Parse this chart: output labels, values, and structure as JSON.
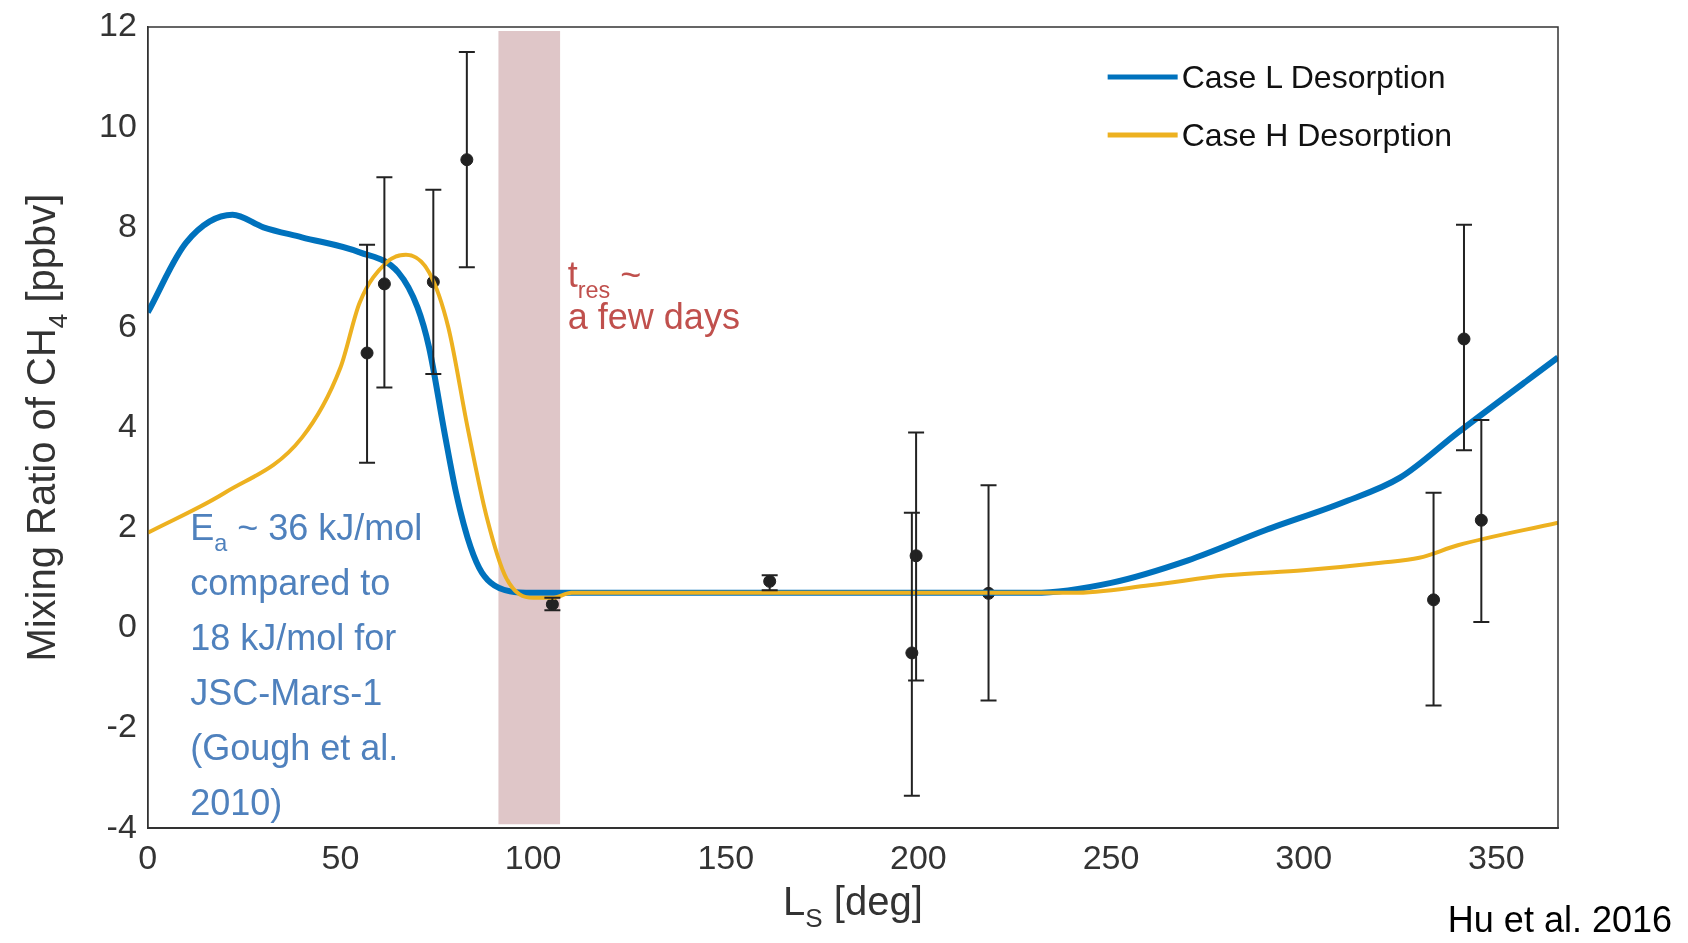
{
  "chart_data": {
    "type": "line",
    "xlabel": "L$_{S}$ [deg]",
    "ylabel": "Mixing Ratio of CH$_{4}$ [ppbv]",
    "xlim": [
      0,
      366
    ],
    "xticks": [
      0,
      50,
      100,
      150,
      200,
      250,
      300,
      350
    ],
    "ylim": [
      -4,
      12
    ],
    "yticks": [
      -4,
      -2,
      0,
      2,
      4,
      6,
      8,
      10,
      12
    ],
    "grid": false,
    "legend": "top right",
    "line_style": "solid",
    "marker": "none",
    "series": [
      {
        "name": "Case L Desorption",
        "color": "#0072bd",
        "x": [
          0,
          10,
          22,
          30,
          40,
          55,
          65,
          70,
          73,
          77,
          80,
          83,
          86,
          89,
          94,
          100,
          120,
          150,
          200,
          230,
          250,
          270,
          290,
          310,
          325,
          340,
          366
        ],
        "values": [
          6.3,
          7.7,
          8.25,
          8.0,
          7.8,
          7.5,
          7.1,
          6.4,
          5.6,
          3.9,
          2.7,
          1.8,
          1.2,
          0.9,
          0.73,
          0.7,
          0.7,
          0.7,
          0.7,
          0.7,
          0.9,
          1.35,
          1.95,
          2.5,
          3.0,
          3.9,
          5.4
        ]
      },
      {
        "name": "Case H Desorption",
        "color": "#edb120",
        "x": [
          0,
          20,
          40,
          50,
          55,
          62,
          67,
          73,
          78,
          83,
          88,
          93,
          100,
          105,
          110,
          150,
          200,
          240,
          260,
          280,
          300,
          320,
          330,
          340,
          366
        ],
        "values": [
          1.9,
          2.7,
          3.8,
          5.2,
          6.5,
          7.3,
          7.45,
          7.1,
          6.0,
          4.0,
          2.2,
          1.0,
          0.6,
          0.6,
          0.7,
          0.7,
          0.7,
          0.7,
          0.85,
          1.05,
          1.15,
          1.3,
          1.4,
          1.65,
          2.1
        ]
      },
      {
        "type": "scatter",
        "color": "#222222",
        "marker": "circle",
        "x": [
          56.9,
          61.4,
          74.1,
          82.8,
          105,
          161.4,
          198.3,
          199.4,
          218.2,
          333.7,
          341.6,
          346.1
        ],
        "values": [
          5.49,
          6.87,
          6.91,
          9.35,
          0.47,
          0.93,
          -0.5,
          1.44,
          0.69,
          0.56,
          5.77,
          2.15
        ],
        "errors": [
          [
            3.3,
            7.65
          ],
          [
            4.8,
            9.0
          ],
          [
            5.07,
            8.75
          ],
          [
            7.2,
            11.5
          ],
          [
            0.35,
            0.6
          ],
          [
            0.75,
            1.05
          ],
          [
            -3.35,
            2.3
          ],
          [
            -1.05,
            3.9
          ],
          [
            -1.45,
            2.85
          ],
          [
            -1.55,
            2.7
          ],
          [
            3.55,
            8.05
          ],
          [
            0.12,
            4.15
          ]
        ]
      }
    ],
    "bands": [
      {
        "axis": "x",
        "from": 91,
        "to": 107,
        "color": "#c9a0a4"
      }
    ],
    "annotations": [
      "t$_{res}$ ~\na few days",
      "E$_{a}$ ~ 36 kJ/mol\ncompared to\n18 kJ/mol for\nJSC-Mars-1\n(Gough et al.\n2010)",
      "Hu et al. 2016"
    ]
  }
}
